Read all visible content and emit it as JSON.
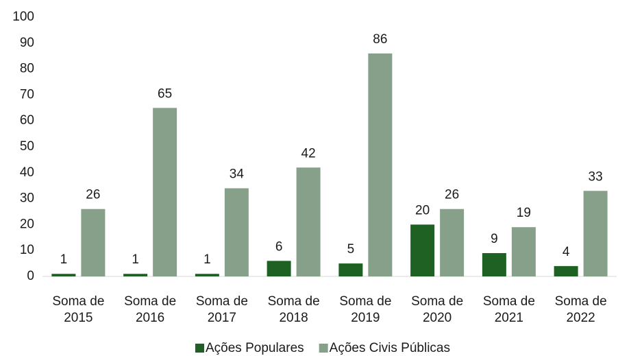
{
  "chart_data": {
    "type": "bar",
    "categories": [
      "Soma de 2015",
      "Soma de 2016",
      "Soma de 2017",
      "Soma de 2018",
      "Soma de 2019",
      "Soma de 2020",
      "Soma de 2021",
      "Soma de 2022"
    ],
    "series": [
      {
        "name": "Ações Populares",
        "color": "#1e6123",
        "values": [
          1,
          1,
          1,
          6,
          5,
          20,
          9,
          4
        ]
      },
      {
        "name": "Ações Civis Públicas",
        "color": "#87a089",
        "values": [
          26,
          65,
          34,
          42,
          86,
          26,
          19,
          33
        ]
      }
    ],
    "ylim": [
      0,
      100
    ],
    "yticks": [
      0,
      10,
      20,
      30,
      40,
      50,
      60,
      70,
      80,
      90,
      100
    ],
    "grid": false,
    "legend": "bottom"
  }
}
